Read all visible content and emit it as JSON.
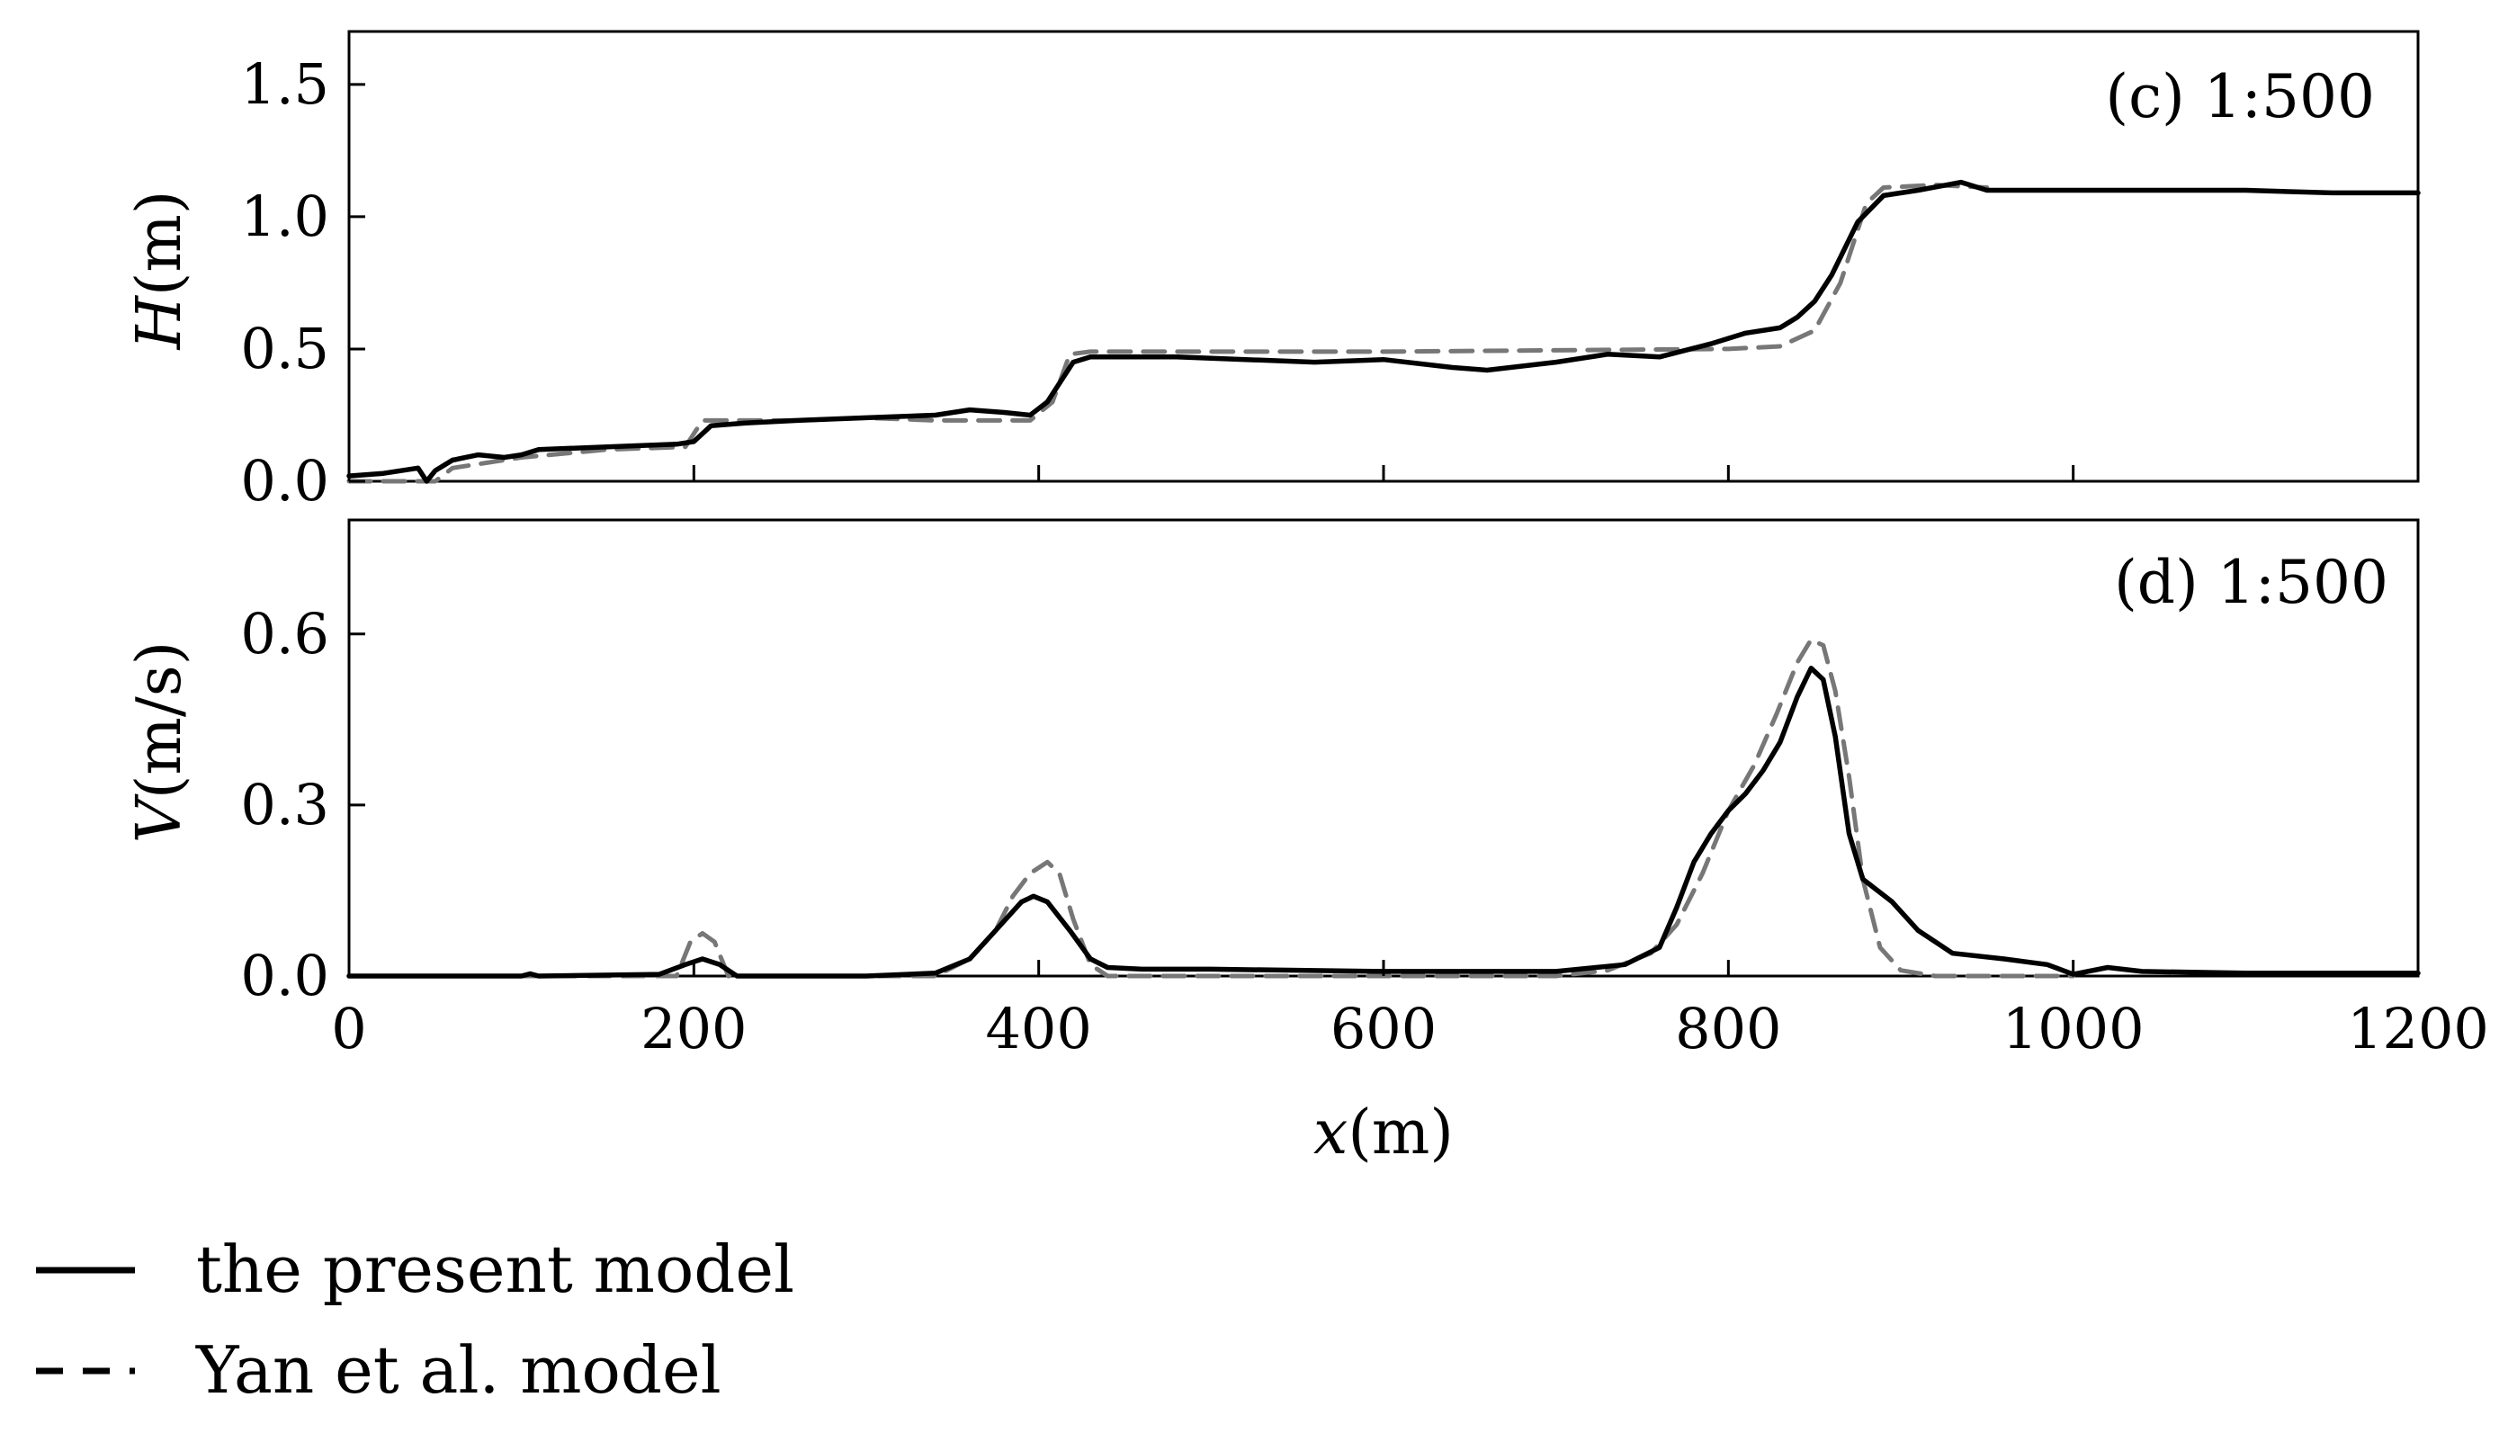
{
  "legend": {
    "items": [
      {
        "label": "the present model",
        "style": "solid",
        "color": "#000000"
      },
      {
        "label": "Yan et al. model",
        "style": "dashed",
        "color": "#777777"
      }
    ]
  },
  "chart_data": [
    {
      "type": "line",
      "panel_label": "(c) 1:500",
      "ylabel_italic": "H",
      "ylabel_unit": "(m)",
      "xlabel": "",
      "xlim": [
        0,
        1200
      ],
      "ylim": [
        0,
        1.7
      ],
      "xticks": [
        0,
        200,
        400,
        600,
        800,
        1000,
        1200
      ],
      "xtick_labels_shown": false,
      "yticks": [
        0.0,
        0.5,
        1.0,
        1.5
      ],
      "ytick_labels": [
        "0.0",
        "0.5",
        "1.0",
        "1.5"
      ],
      "grid": false,
      "series": [
        {
          "name": "the present model",
          "style": "solid",
          "color": "#000000",
          "points": [
            [
              0,
              0.02
            ],
            [
              20,
              0.03
            ],
            [
              40,
              0.05
            ],
            [
              45,
              0.0
            ],
            [
              50,
              0.04
            ],
            [
              60,
              0.08
            ],
            [
              75,
              0.1
            ],
            [
              90,
              0.09
            ],
            [
              100,
              0.1
            ],
            [
              110,
              0.12
            ],
            [
              150,
              0.13
            ],
            [
              190,
              0.14
            ],
            [
              200,
              0.15
            ],
            [
              210,
              0.21
            ],
            [
              230,
              0.22
            ],
            [
              260,
              0.23
            ],
            [
              300,
              0.24
            ],
            [
              340,
              0.25
            ],
            [
              360,
              0.27
            ],
            [
              380,
              0.26
            ],
            [
              395,
              0.25
            ],
            [
              405,
              0.3
            ],
            [
              420,
              0.45
            ],
            [
              430,
              0.47
            ],
            [
              480,
              0.47
            ],
            [
              520,
              0.46
            ],
            [
              560,
              0.45
            ],
            [
              600,
              0.46
            ],
            [
              640,
              0.43
            ],
            [
              660,
              0.42
            ],
            [
              700,
              0.45
            ],
            [
              730,
              0.48
            ],
            [
              760,
              0.47
            ],
            [
              790,
              0.52
            ],
            [
              810,
              0.56
            ],
            [
              830,
              0.58
            ],
            [
              840,
              0.62
            ],
            [
              850,
              0.68
            ],
            [
              860,
              0.78
            ],
            [
              875,
              0.98
            ],
            [
              890,
              1.08
            ],
            [
              910,
              1.1
            ],
            [
              935,
              1.13
            ],
            [
              950,
              1.1
            ],
            [
              1000,
              1.1
            ],
            [
              1050,
              1.1
            ],
            [
              1100,
              1.1
            ],
            [
              1150,
              1.09
            ],
            [
              1200,
              1.09
            ]
          ]
        },
        {
          "name": "Yan et al. model",
          "style": "dashed",
          "color": "#777777",
          "points": [
            [
              0,
              0.0
            ],
            [
              50,
              0.0
            ],
            [
              60,
              0.05
            ],
            [
              100,
              0.09
            ],
            [
              150,
              0.12
            ],
            [
              195,
              0.13
            ],
            [
              205,
              0.23
            ],
            [
              260,
              0.23
            ],
            [
              300,
              0.24
            ],
            [
              340,
              0.23
            ],
            [
              395,
              0.23
            ],
            [
              408,
              0.3
            ],
            [
              418,
              0.48
            ],
            [
              430,
              0.49
            ],
            [
              600,
              0.49
            ],
            [
              800,
              0.5
            ],
            [
              830,
              0.51
            ],
            [
              850,
              0.57
            ],
            [
              865,
              0.75
            ],
            [
              880,
              1.05
            ],
            [
              890,
              1.11
            ],
            [
              920,
              1.12
            ],
            [
              950,
              1.11
            ]
          ]
        }
      ]
    },
    {
      "type": "line",
      "panel_label": "(d) 1:500",
      "ylabel_italic": "V",
      "ylabel_unit": "(m/s)",
      "xlabel_italic": "x",
      "xlabel_unit": "(m)",
      "xlim": [
        0,
        1200
      ],
      "ylim": [
        0,
        0.8
      ],
      "xticks": [
        0,
        200,
        400,
        600,
        800,
        1000,
        1200
      ],
      "xtick_labels": [
        "0",
        "200",
        "400",
        "600",
        "800",
        "1000",
        "1200"
      ],
      "yticks": [
        0.0,
        0.3,
        0.6
      ],
      "ytick_labels": [
        "0.0",
        "0.3",
        "0.6"
      ],
      "grid": false,
      "series": [
        {
          "name": "the present model",
          "style": "solid",
          "color": "#000000",
          "points": [
            [
              0,
              0.0
            ],
            [
              100,
              0.0
            ],
            [
              105,
              0.004
            ],
            [
              110,
              0.0
            ],
            [
              180,
              0.003
            ],
            [
              195,
              0.02
            ],
            [
              205,
              0.03
            ],
            [
              215,
              0.02
            ],
            [
              225,
              0.0
            ],
            [
              300,
              0.0
            ],
            [
              340,
              0.005
            ],
            [
              360,
              0.03
            ],
            [
              375,
              0.08
            ],
            [
              390,
              0.13
            ],
            [
              397,
              0.14
            ],
            [
              405,
              0.13
            ],
            [
              418,
              0.08
            ],
            [
              430,
              0.03
            ],
            [
              440,
              0.015
            ],
            [
              460,
              0.012
            ],
            [
              500,
              0.012
            ],
            [
              600,
              0.008
            ],
            [
              700,
              0.008
            ],
            [
              740,
              0.02
            ],
            [
              760,
              0.05
            ],
            [
              770,
              0.12
            ],
            [
              780,
              0.2
            ],
            [
              790,
              0.25
            ],
            [
              800,
              0.29
            ],
            [
              810,
              0.32
            ],
            [
              820,
              0.36
            ],
            [
              830,
              0.41
            ],
            [
              840,
              0.49
            ],
            [
              848,
              0.54
            ],
            [
              855,
              0.52
            ],
            [
              862,
              0.42
            ],
            [
              870,
              0.25
            ],
            [
              878,
              0.17
            ],
            [
              895,
              0.13
            ],
            [
              910,
              0.08
            ],
            [
              930,
              0.04
            ],
            [
              960,
              0.03
            ],
            [
              985,
              0.02
            ],
            [
              1000,
              0.003
            ],
            [
              1020,
              0.015
            ],
            [
              1040,
              0.008
            ],
            [
              1100,
              0.005
            ],
            [
              1200,
              0.005
            ]
          ]
        },
        {
          "name": "Yan et al. model",
          "style": "dashed",
          "color": "#777777",
          "points": [
            [
              0,
              0.0
            ],
            [
              190,
              0.0
            ],
            [
              198,
              0.06
            ],
            [
              205,
              0.075
            ],
            [
              212,
              0.06
            ],
            [
              220,
              0.0
            ],
            [
              340,
              0.0
            ],
            [
              360,
              0.03
            ],
            [
              375,
              0.08
            ],
            [
              385,
              0.14
            ],
            [
              395,
              0.18
            ],
            [
              405,
              0.2
            ],
            [
              412,
              0.18
            ],
            [
              420,
              0.1
            ],
            [
              430,
              0.02
            ],
            [
              440,
              0.0
            ],
            [
              700,
              0.0
            ],
            [
              730,
              0.01
            ],
            [
              755,
              0.04
            ],
            [
              770,
              0.09
            ],
            [
              785,
              0.18
            ],
            [
              800,
              0.29
            ],
            [
              815,
              0.37
            ],
            [
              828,
              0.46
            ],
            [
              840,
              0.55
            ],
            [
              848,
              0.59
            ],
            [
              855,
              0.58
            ],
            [
              862,
              0.5
            ],
            [
              870,
              0.35
            ],
            [
              878,
              0.17
            ],
            [
              888,
              0.05
            ],
            [
              900,
              0.01
            ],
            [
              920,
              0.0
            ],
            [
              1000,
              0.0
            ]
          ]
        }
      ]
    }
  ]
}
